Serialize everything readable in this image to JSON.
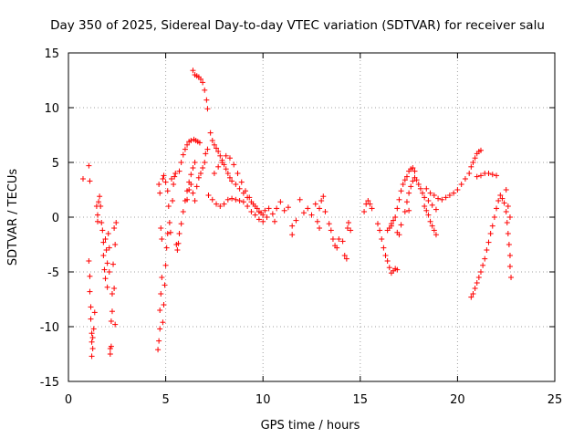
{
  "chart_data": {
    "type": "scatter",
    "title": "Day 350 of 2025, Sidereal Day-to-day VTEC variation (SDTVAR) for receiver salu",
    "xlabel": "GPS time / hours",
    "ylabel": "SDTVAR / TECUs",
    "xlim": [
      0,
      25
    ],
    "ylim": [
      -15,
      15
    ],
    "xticks": [
      0,
      5,
      10,
      15,
      20,
      25
    ],
    "yticks": [
      -15,
      -10,
      -5,
      0,
      5,
      10,
      15
    ],
    "grid": true,
    "marker": "+",
    "color": "#ff0000",
    "series": [
      {
        "name": "SDTVAR",
        "points": [
          [
            0.75,
            3.5
          ],
          [
            1.05,
            4.7
          ],
          [
            1.1,
            3.3
          ],
          [
            1.05,
            -4.0
          ],
          [
            1.1,
            -5.4
          ],
          [
            1.1,
            -6.8
          ],
          [
            1.15,
            -8.2
          ],
          [
            1.15,
            -9.3
          ],
          [
            1.2,
            -10.6
          ],
          [
            1.2,
            -11.4
          ],
          [
            1.25,
            -12.0
          ],
          [
            1.2,
            -12.7
          ],
          [
            1.25,
            -11.0
          ],
          [
            1.3,
            -10.2
          ],
          [
            1.35,
            -8.7
          ],
          [
            1.45,
            1.0
          ],
          [
            1.5,
            0.2
          ],
          [
            1.5,
            -0.4
          ],
          [
            1.55,
            1.4
          ],
          [
            1.6,
            1.9
          ],
          [
            1.65,
            1.0
          ],
          [
            1.7,
            -0.5
          ],
          [
            1.75,
            -1.2
          ],
          [
            1.8,
            -2.3
          ],
          [
            1.8,
            -3.5
          ],
          [
            1.85,
            -4.8
          ],
          [
            1.9,
            -5.6
          ],
          [
            1.9,
            -2.0
          ],
          [
            1.95,
            -3.0
          ],
          [
            2.0,
            -4.2
          ],
          [
            2.0,
            -6.4
          ],
          [
            2.05,
            -1.5
          ],
          [
            2.1,
            -2.8
          ],
          [
            2.1,
            -5.0
          ],
          [
            2.15,
            -12.0
          ],
          [
            2.15,
            -12.5
          ],
          [
            2.2,
            -11.8
          ],
          [
            2.2,
            -9.5
          ],
          [
            2.25,
            -7.0
          ],
          [
            2.25,
            -8.6
          ],
          [
            2.3,
            -4.3
          ],
          [
            2.35,
            -6.5
          ],
          [
            2.35,
            -1.0
          ],
          [
            2.4,
            -2.5
          ],
          [
            2.4,
            -9.8
          ],
          [
            2.45,
            -0.5
          ],
          [
            4.6,
            -12.1
          ],
          [
            4.65,
            -11.3
          ],
          [
            4.7,
            -10.2
          ],
          [
            4.7,
            -8.5
          ],
          [
            4.75,
            -7.0
          ],
          [
            4.8,
            -5.5
          ],
          [
            4.85,
            -9.6
          ],
          [
            4.9,
            -8.0
          ],
          [
            4.95,
            -6.2
          ],
          [
            5.0,
            -4.4
          ],
          [
            5.05,
            -2.8
          ],
          [
            5.1,
            -1.5
          ],
          [
            4.65,
            3.0
          ],
          [
            4.7,
            2.2
          ],
          [
            4.75,
            -1.0
          ],
          [
            4.8,
            -2.0
          ],
          [
            4.85,
            3.5
          ],
          [
            4.9,
            3.8
          ],
          [
            5.0,
            3.2
          ],
          [
            5.1,
            2.4
          ],
          [
            5.15,
            1.0
          ],
          [
            5.2,
            -0.5
          ],
          [
            5.25,
            -1.4
          ],
          [
            5.3,
            3.5
          ],
          [
            5.35,
            1.5
          ],
          [
            5.4,
            3.0
          ],
          [
            5.45,
            3.7
          ],
          [
            5.5,
            4.0
          ],
          [
            5.55,
            -2.5
          ],
          [
            5.6,
            -3.0
          ],
          [
            5.65,
            -2.4
          ],
          [
            5.7,
            -1.5
          ],
          [
            5.8,
            -0.6
          ],
          [
            5.9,
            0.5
          ],
          [
            6.0,
            1.5
          ],
          [
            6.1,
            2.4
          ],
          [
            6.2,
            3.2
          ],
          [
            6.3,
            3.9
          ],
          [
            6.4,
            4.5
          ],
          [
            6.5,
            5.0
          ],
          [
            5.7,
            4.2
          ],
          [
            5.8,
            5.0
          ],
          [
            5.9,
            5.7
          ],
          [
            6.0,
            6.2
          ],
          [
            6.1,
            6.6
          ],
          [
            6.2,
            6.9
          ],
          [
            6.3,
            7.0
          ],
          [
            6.45,
            7.1
          ],
          [
            6.55,
            7.0
          ],
          [
            6.65,
            6.9
          ],
          [
            6.75,
            6.8
          ],
          [
            6.1,
            1.6
          ],
          [
            6.2,
            2.5
          ],
          [
            6.3,
            3.0
          ],
          [
            6.4,
            2.2
          ],
          [
            6.5,
            1.5
          ],
          [
            6.6,
            2.8
          ],
          [
            6.7,
            3.6
          ],
          [
            6.8,
            4.0
          ],
          [
            6.9,
            4.5
          ],
          [
            7.0,
            5.0
          ],
          [
            6.4,
            13.4
          ],
          [
            6.5,
            13.0
          ],
          [
            6.6,
            12.9
          ],
          [
            6.7,
            12.8
          ],
          [
            6.8,
            12.6
          ],
          [
            6.9,
            12.3
          ],
          [
            7.0,
            11.6
          ],
          [
            7.1,
            10.7
          ],
          [
            7.15,
            9.9
          ],
          [
            7.05,
            5.8
          ],
          [
            7.15,
            6.2
          ],
          [
            7.3,
            7.7
          ],
          [
            7.4,
            7.0
          ],
          [
            7.5,
            6.6
          ],
          [
            7.6,
            6.3
          ],
          [
            7.7,
            6.0
          ],
          [
            7.8,
            5.6
          ],
          [
            7.9,
            5.2
          ],
          [
            8.0,
            4.8
          ],
          [
            8.1,
            4.4
          ],
          [
            8.2,
            4.0
          ],
          [
            8.3,
            3.6
          ],
          [
            8.4,
            3.3
          ],
          [
            8.6,
            3.0
          ],
          [
            8.8,
            2.6
          ],
          [
            9.0,
            2.2
          ],
          [
            9.2,
            1.8
          ],
          [
            9.4,
            1.4
          ],
          [
            9.6,
            1.0
          ],
          [
            9.8,
            0.5
          ],
          [
            10.0,
            0.2
          ],
          [
            10.2,
            0.0
          ],
          [
            7.2,
            2.0
          ],
          [
            7.4,
            1.6
          ],
          [
            7.6,
            1.2
          ],
          [
            7.8,
            1.0
          ],
          [
            8.0,
            1.2
          ],
          [
            8.2,
            1.6
          ],
          [
            8.4,
            1.7
          ],
          [
            8.6,
            1.6
          ],
          [
            8.8,
            1.5
          ],
          [
            9.0,
            1.4
          ],
          [
            9.2,
            1.0
          ],
          [
            9.4,
            0.5
          ],
          [
            9.6,
            0.2
          ],
          [
            9.8,
            -0.2
          ],
          [
            10.0,
            -0.4
          ],
          [
            7.5,
            4.0
          ],
          [
            7.7,
            4.6
          ],
          [
            7.9,
            5.0
          ],
          [
            8.1,
            5.6
          ],
          [
            8.3,
            5.4
          ],
          [
            8.5,
            4.8
          ],
          [
            8.7,
            4.0
          ],
          [
            8.9,
            3.2
          ],
          [
            9.1,
            2.4
          ],
          [
            9.3,
            1.8
          ],
          [
            9.5,
            1.2
          ],
          [
            9.7,
            0.8
          ],
          [
            9.9,
            0.4
          ],
          [
            10.1,
            0.6
          ],
          [
            10.3,
            0.8
          ],
          [
            10.5,
            0.3
          ],
          [
            10.7,
            0.8
          ],
          [
            10.9,
            1.4
          ],
          [
            11.1,
            0.6
          ],
          [
            11.3,
            0.9
          ],
          [
            11.5,
            -0.8
          ],
          [
            11.7,
            -0.3
          ],
          [
            11.9,
            1.6
          ],
          [
            12.1,
            0.4
          ],
          [
            12.3,
            0.8
          ],
          [
            12.5,
            0.2
          ],
          [
            12.7,
            1.2
          ],
          [
            12.8,
            -0.4
          ],
          [
            12.9,
            0.8
          ],
          [
            13.0,
            1.5
          ],
          [
            13.1,
            1.9
          ],
          [
            12.9,
            -1.0
          ],
          [
            13.2,
            0.5
          ],
          [
            13.4,
            -0.6
          ],
          [
            13.5,
            -1.2
          ],
          [
            13.6,
            -2.0
          ],
          [
            13.7,
            -2.6
          ],
          [
            13.8,
            -2.8
          ],
          [
            13.9,
            -2.0
          ],
          [
            14.1,
            -2.2
          ],
          [
            14.2,
            -3.5
          ],
          [
            14.3,
            -3.8
          ],
          [
            14.35,
            -1.0
          ],
          [
            14.4,
            -0.5
          ],
          [
            14.5,
            -1.2
          ],
          [
            11.5,
            -1.6
          ],
          [
            10.6,
            -0.4
          ],
          [
            15.2,
            0.5
          ],
          [
            15.3,
            1.2
          ],
          [
            15.4,
            1.5
          ],
          [
            15.5,
            1.2
          ],
          [
            15.6,
            0.8
          ],
          [
            15.9,
            -0.6
          ],
          [
            16.0,
            -1.2
          ],
          [
            16.1,
            -2.0
          ],
          [
            16.2,
            -2.8
          ],
          [
            16.3,
            -3.5
          ],
          [
            16.4,
            -4.0
          ],
          [
            16.5,
            -4.6
          ],
          [
            16.6,
            -5.1
          ],
          [
            16.7,
            -4.9
          ],
          [
            16.8,
            -4.7
          ],
          [
            16.9,
            -4.8
          ],
          [
            16.4,
            -1.2
          ],
          [
            16.5,
            -1.0
          ],
          [
            16.6,
            -0.6
          ],
          [
            16.7,
            -0.3
          ],
          [
            16.8,
            0.0
          ],
          [
            16.9,
            0.8
          ],
          [
            17.0,
            1.6
          ],
          [
            17.1,
            2.4
          ],
          [
            17.2,
            3.0
          ],
          [
            17.3,
            3.4
          ],
          [
            17.4,
            3.7
          ],
          [
            17.5,
            4.2
          ],
          [
            17.6,
            4.4
          ],
          [
            17.7,
            4.5
          ],
          [
            17.8,
            4.2
          ],
          [
            17.3,
            0.5
          ],
          [
            17.4,
            1.4
          ],
          [
            17.5,
            2.2
          ],
          [
            17.6,
            2.8
          ],
          [
            17.7,
            3.3
          ],
          [
            17.8,
            3.6
          ],
          [
            17.9,
            3.4
          ],
          [
            18.0,
            3.0
          ],
          [
            18.1,
            2.6
          ],
          [
            18.2,
            2.2
          ],
          [
            18.3,
            1.8
          ],
          [
            18.5,
            1.5
          ],
          [
            18.7,
            1.1
          ],
          [
            18.9,
            0.7
          ],
          [
            16.6,
            -0.8
          ],
          [
            17.1,
            -0.7
          ],
          [
            17.5,
            0.6
          ],
          [
            17.0,
            -1.6
          ],
          [
            16.9,
            -1.4
          ],
          [
            18.3,
            1.0
          ],
          [
            18.4,
            0.6
          ],
          [
            18.5,
            0.2
          ],
          [
            18.6,
            -0.4
          ],
          [
            18.7,
            -0.8
          ],
          [
            18.8,
            -1.2
          ],
          [
            18.9,
            -1.6
          ],
          [
            18.4,
            2.6
          ],
          [
            18.6,
            2.2
          ],
          [
            18.8,
            2.0
          ],
          [
            19.0,
            1.7
          ],
          [
            19.2,
            1.6
          ],
          [
            19.4,
            1.8
          ],
          [
            19.6,
            2.0
          ],
          [
            19.8,
            2.2
          ],
          [
            20.0,
            2.5
          ],
          [
            20.2,
            3.0
          ],
          [
            20.4,
            3.5
          ],
          [
            20.6,
            4.0
          ],
          [
            20.7,
            4.6
          ],
          [
            20.8,
            5.0
          ],
          [
            20.9,
            5.4
          ],
          [
            21.0,
            5.8
          ],
          [
            21.1,
            6.0
          ],
          [
            21.2,
            6.1
          ],
          [
            21.0,
            3.7
          ],
          [
            21.2,
            3.8
          ],
          [
            21.4,
            4.0
          ],
          [
            21.6,
            4.0
          ],
          [
            21.8,
            3.9
          ],
          [
            22.0,
            3.8
          ],
          [
            20.7,
            -7.3
          ],
          [
            20.8,
            -7.0
          ],
          [
            20.9,
            -6.5
          ],
          [
            21.0,
            -6.0
          ],
          [
            21.1,
            -5.5
          ],
          [
            21.2,
            -5.0
          ],
          [
            21.3,
            -4.4
          ],
          [
            21.4,
            -3.8
          ],
          [
            21.5,
            -3.0
          ],
          [
            21.6,
            -2.3
          ],
          [
            21.7,
            -1.5
          ],
          [
            21.8,
            -0.8
          ],
          [
            21.9,
            0.0
          ],
          [
            22.0,
            0.8
          ],
          [
            22.1,
            1.5
          ],
          [
            22.2,
            2.0
          ],
          [
            22.3,
            1.7
          ],
          [
            22.4,
            1.3
          ],
          [
            22.5,
            2.5
          ],
          [
            22.5,
            0.5
          ],
          [
            22.55,
            -0.5
          ],
          [
            22.6,
            -1.5
          ],
          [
            22.65,
            -2.5
          ],
          [
            22.7,
            -3.5
          ],
          [
            22.7,
            -4.5
          ],
          [
            22.75,
            -5.5
          ],
          [
            22.6,
            1.0
          ],
          [
            22.7,
            0.0
          ]
        ]
      }
    ]
  }
}
